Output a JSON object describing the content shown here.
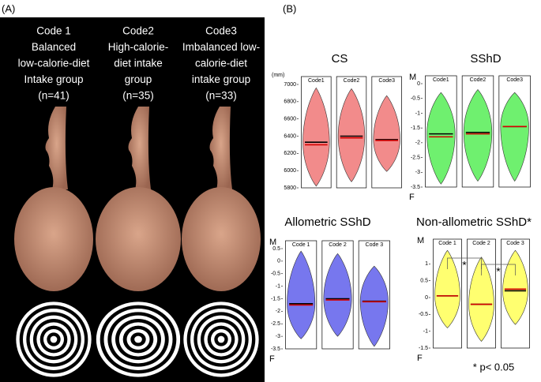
{
  "panel_a": {
    "label": "(A)",
    "columns": [
      [
        "Code 1",
        "Balanced",
        "low-calorie-diet",
        "Intake group",
        "(n=41)"
      ],
      [
        "Code2",
        "High-calorie-",
        "diet intake",
        "group",
        "(n=35)"
      ],
      [
        "Code3",
        "Imbalanced low-",
        "calorie-diet",
        "intake group",
        "(n=33)"
      ]
    ]
  },
  "panel_b_label": "(B)",
  "footnote": "* p< 0.05",
  "chart_data": [
    {
      "type": "violin",
      "title": "CS",
      "unit_label": "(mm)",
      "categories": [
        "Code1",
        "Code2",
        "Code3"
      ],
      "series": [
        {
          "color": "#000000",
          "values": [
            6330,
            6400,
            6360
          ]
        },
        {
          "color": "#d40000",
          "values": [
            6300,
            6380,
            6350
          ]
        }
      ],
      "ranges": [
        [
          5820,
          6960
        ],
        [
          5870,
          6950
        ],
        [
          5990,
          6870
        ]
      ],
      "color": "#f28b8b",
      "ylim": [
        5800,
        7000
      ],
      "yticks": [
        5800,
        6000,
        6200,
        6400,
        6600,
        6800,
        7000
      ]
    },
    {
      "type": "violin",
      "title": "SShD",
      "top_label": "M",
      "bottom_label": "F",
      "categories": [
        "Code1",
        "Code2",
        "Code3"
      ],
      "series": [
        {
          "color": "#000000",
          "values": [
            -1.7,
            -1.65,
            -1.45
          ]
        },
        {
          "color": "#d40000",
          "values": [
            -1.8,
            -1.7,
            -1.45
          ]
        }
      ],
      "ranges": [
        [
          -3.4,
          -0.3
        ],
        [
          -3.3,
          -0.2
        ],
        [
          -3.3,
          -0.3
        ]
      ],
      "color": "#6ff06f",
      "ylim": [
        -3.5,
        0
      ],
      "yticks": [
        0,
        -0.5,
        -1,
        -1.5,
        -2,
        -2.5,
        -3,
        -3.5
      ]
    },
    {
      "type": "violin",
      "title": "Allometric SShD",
      "top_label": "M",
      "bottom_label": "F",
      "categories": [
        "Code 1",
        "Code 2",
        "Code 3"
      ],
      "series": [
        {
          "color": "#000000",
          "values": [
            -1.7,
            -1.5,
            -1.6
          ]
        },
        {
          "color": "#d40000",
          "values": [
            -1.75,
            -1.55,
            -1.62
          ]
        }
      ],
      "ranges": [
        [
          -3.1,
          0.4
        ],
        [
          -3.0,
          0.3
        ],
        [
          -3.4,
          -0.2
        ]
      ],
      "color": "#7777ee",
      "ylim": [
        -3.5,
        0.5
      ],
      "yticks": [
        0.5,
        0,
        -0.5,
        -1,
        -1.5,
        -2,
        -2.5,
        -3,
        -3.5
      ]
    },
    {
      "type": "violin",
      "title": "Non-allometric SShD*",
      "top_label": "M",
      "bottom_label": "F",
      "categories": [
        "Code 1",
        "Code 2",
        "Code 3"
      ],
      "series": [
        {
          "color": "#000000",
          "values": [
            0.05,
            -0.2,
            0.2
          ]
        },
        {
          "color": "#d40000",
          "values": [
            0.05,
            -0.2,
            0.25
          ]
        }
      ],
      "ranges": [
        [
          -0.9,
          1.4
        ],
        [
          -1.3,
          1.2
        ],
        [
          -0.8,
          1.4
        ]
      ],
      "color": "#ffff70",
      "ylim": [
        -1.5,
        1.5
      ],
      "yticks": [
        1,
        0.5,
        0,
        -0.5,
        -1,
        -1.5
      ],
      "annotations": [
        "*",
        "*"
      ]
    }
  ]
}
